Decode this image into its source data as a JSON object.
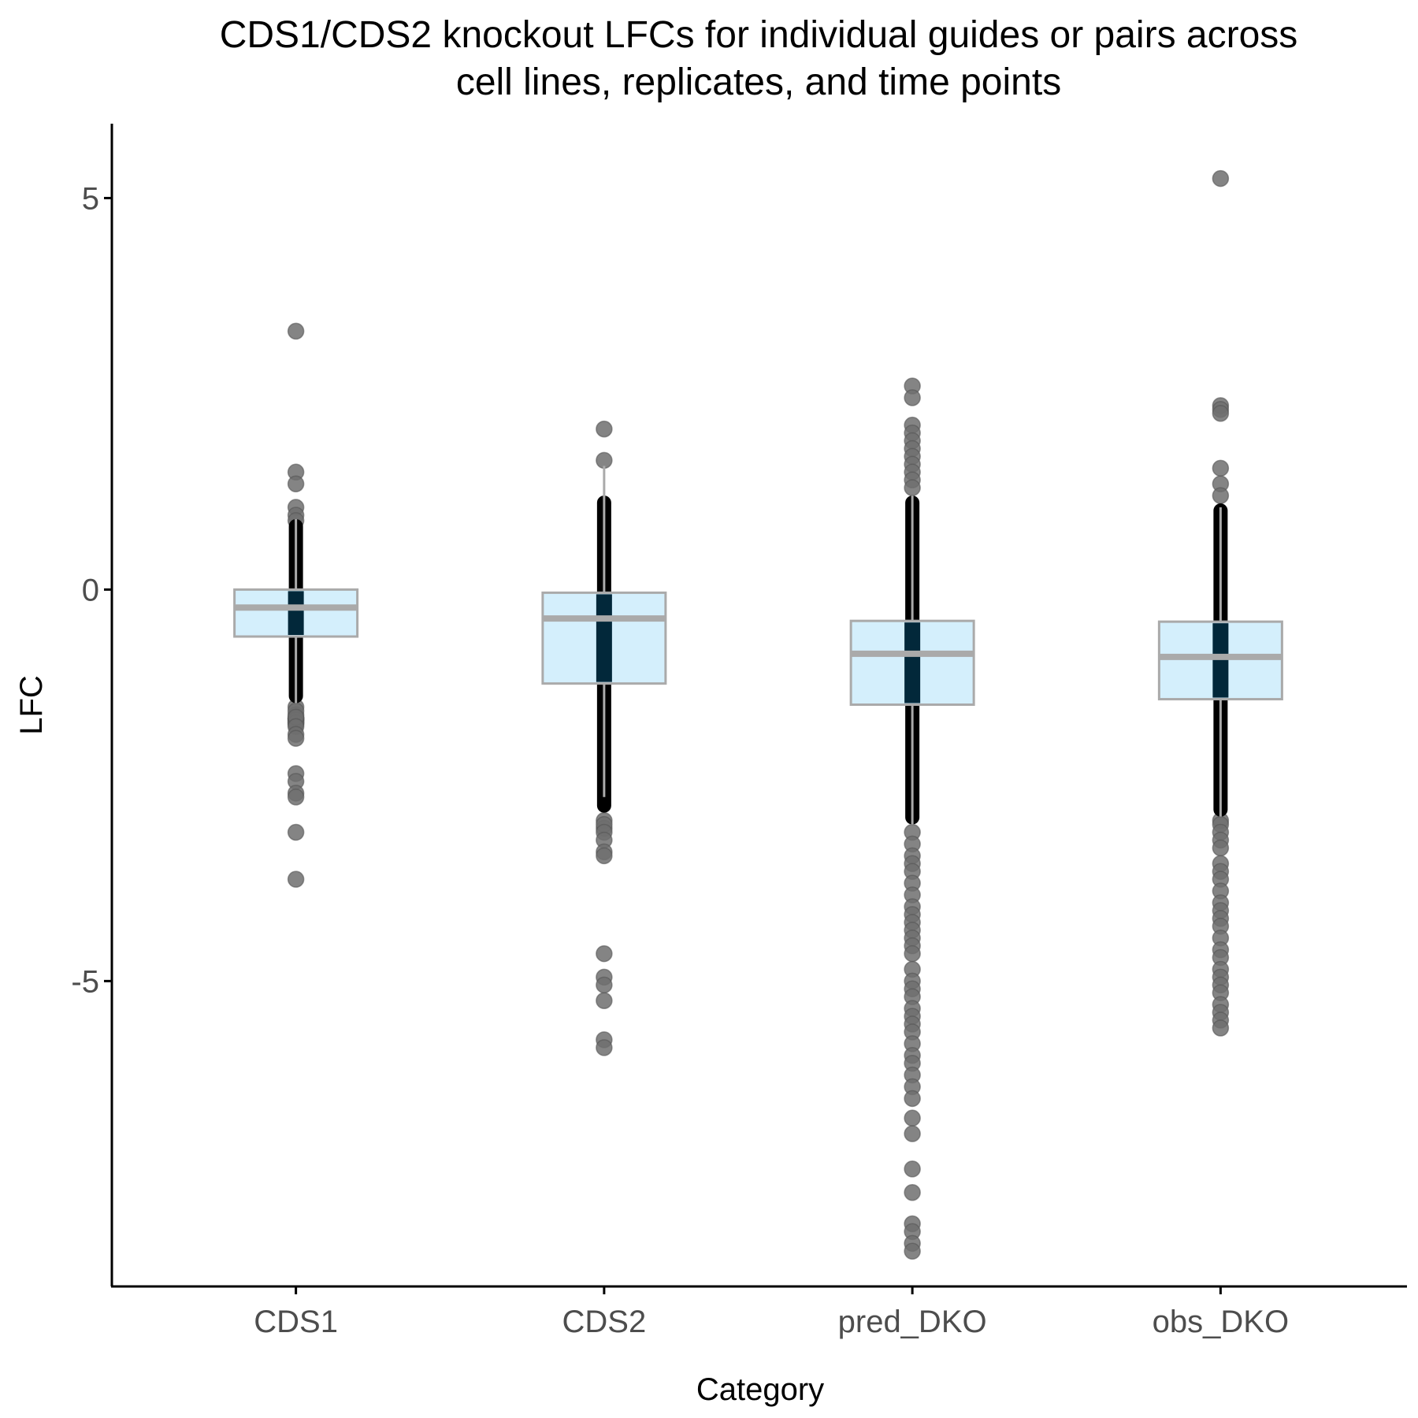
{
  "chart_data": {
    "type": "box",
    "title_lines": [
      "CDS1/CDS2 knockout LFCs for individual guides or pairs across",
      "cell lines, replicates, and time points"
    ],
    "xlabel": "Category",
    "ylabel": "LFC",
    "ylim": [
      -8.9,
      5.95
    ],
    "yticks": [
      5,
      0,
      -5
    ],
    "ytick_labels": [
      "5",
      "0",
      "-5"
    ],
    "categories": [
      "CDS1",
      "CDS2",
      "pred_DKO",
      "obs_DKO"
    ],
    "grid": false,
    "legend": "none",
    "colors": {
      "box_fill": "#d4effc",
      "box_line": "#aaaaaa",
      "outlier": "#6e6e6e",
      "outlier_light": "#9a9a9a",
      "jitter_column": "#000000",
      "jitter_core": "#02283a",
      "axis": "#000000"
    },
    "series": [
      {
        "category": "CDS1",
        "q1": -0.6,
        "median": -0.23,
        "q3": 0.0,
        "whisker_low": -1.45,
        "whisker_high": 0.9,
        "dense_range": [
          -1.45,
          0.9
        ],
        "outliers": [
          3.3,
          1.5,
          1.35,
          1.05,
          0.95,
          0.88,
          -1.5,
          -1.6,
          -1.65,
          -1.7,
          -1.65,
          -1.72,
          -1.65,
          -1.68,
          -1.55,
          -1.65,
          -1.67,
          -1.7,
          -1.63,
          -1.75,
          -1.85,
          -1.9,
          -2.35,
          -2.45,
          -2.6,
          -2.65,
          -3.1,
          -3.7
        ]
      },
      {
        "category": "CDS2",
        "q1": -1.2,
        "median": -0.37,
        "q3": -0.04,
        "whisker_low": -2.65,
        "whisker_high": 1.58,
        "dense_range": [
          -2.85,
          1.2
        ],
        "outliers": [
          2.05,
          1.65,
          -2.95,
          -3.05,
          -3.0,
          -3.1,
          -3.2,
          -3.35,
          -3.4,
          -4.65,
          -4.95,
          -5.05,
          -5.25,
          -5.75,
          -5.85
        ]
      },
      {
        "category": "pred_DKO",
        "q1": -1.47,
        "median": -0.82,
        "q3": -0.4,
        "whisker_low": -3.0,
        "whisker_high": 1.2,
        "dense_range": [
          -3.0,
          1.2
        ],
        "outliers": [
          2.6,
          2.45,
          2.1,
          2.0,
          1.9,
          1.8,
          1.7,
          1.6,
          1.5,
          1.4,
          1.3,
          -3.1,
          -3.25,
          -3.4,
          -3.5,
          -3.6,
          -3.75,
          -3.9,
          -4.05,
          -4.15,
          -4.25,
          -4.35,
          -4.45,
          -4.55,
          -4.65,
          -4.85,
          -5.0,
          -5.1,
          -5.2,
          -5.35,
          -5.45,
          -5.55,
          -5.65,
          -5.8,
          -5.95,
          -6.05,
          -6.2,
          -6.35,
          -6.5,
          -6.75,
          -6.95,
          -7.4,
          -7.7,
          -8.1,
          -8.2,
          -8.35,
          -8.45
        ]
      },
      {
        "category": "obs_DKO",
        "q1": -1.4,
        "median": -0.86,
        "q3": -0.41,
        "whisker_low": -2.9,
        "whisker_high": 1.05,
        "dense_range": [
          -2.9,
          1.1
        ],
        "outliers": [
          5.25,
          2.35,
          2.3,
          2.25,
          1.55,
          1.35,
          1.2,
          -2.95,
          -3.0,
          -3.1,
          -3.2,
          -3.3,
          -3.5,
          -3.6,
          -3.7,
          -3.85,
          -4.0,
          -4.1,
          -4.2,
          -4.3,
          -4.45,
          -4.6,
          -4.7,
          -4.85,
          -4.95,
          -5.05,
          -5.15,
          -5.3,
          -5.4,
          -5.5,
          -5.6
        ]
      }
    ]
  }
}
